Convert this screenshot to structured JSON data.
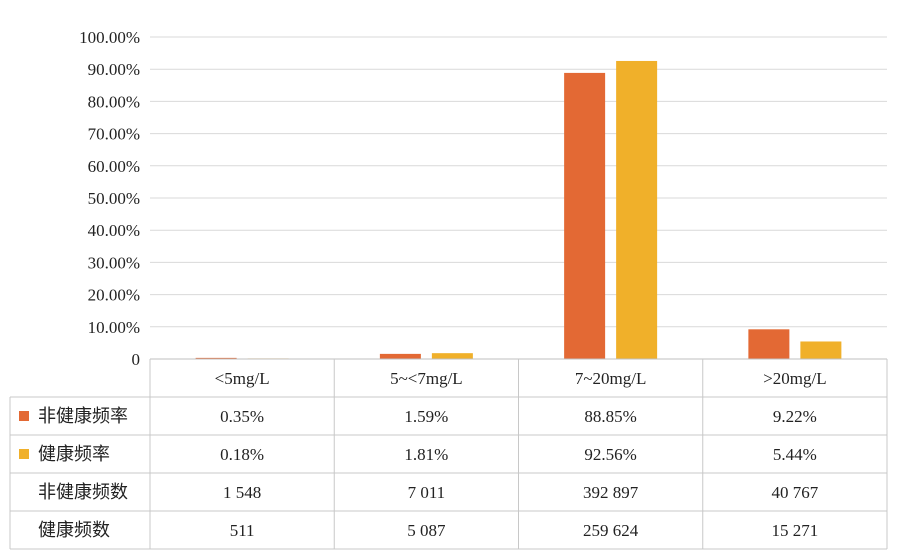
{
  "chart_data": {
    "type": "bar",
    "categories": [
      "<5mg/L",
      "5~<7mg/L",
      "7~20mg/L",
      ">20mg/L"
    ],
    "series": [
      {
        "name": "非健康频率",
        "values": [
          0.35,
          1.59,
          88.85,
          9.22
        ],
        "color": "#E36934"
      },
      {
        "name": "健康频率",
        "values": [
          0.18,
          1.81,
          92.56,
          5.44
        ],
        "color": "#F0B02A"
      }
    ],
    "y_ticks": [
      "0",
      "10.00%",
      "20.00%",
      "30.00%",
      "40.00%",
      "50.00%",
      "60.00%",
      "70.00%",
      "80.00%",
      "90.00%",
      "100.00%"
    ],
    "ylim": [
      0,
      100
    ],
    "grid": true,
    "legend": "data-table",
    "table": {
      "header": [
        "<5mg/L",
        "5~<7mg/L",
        "7~20mg/L",
        ">20mg/L"
      ],
      "rows": [
        {
          "label": "非健康频率",
          "legend_key": true,
          "color": "#E36934",
          "cells": [
            "0.35%",
            "1.59%",
            "88.85%",
            "9.22%"
          ]
        },
        {
          "label": "健康频率",
          "legend_key": true,
          "color": "#F0B02A",
          "cells": [
            "0.18%",
            "1.81%",
            "92.56%",
            "5.44%"
          ]
        },
        {
          "label": "非健康频数",
          "legend_key": false,
          "cells": [
            "1 548",
            "7 011",
            "392 897",
            "40 767"
          ]
        },
        {
          "label": "健康频数",
          "legend_key": false,
          "cells": [
            "511",
            "5 087",
            "259 624",
            "15 271"
          ]
        }
      ]
    }
  }
}
